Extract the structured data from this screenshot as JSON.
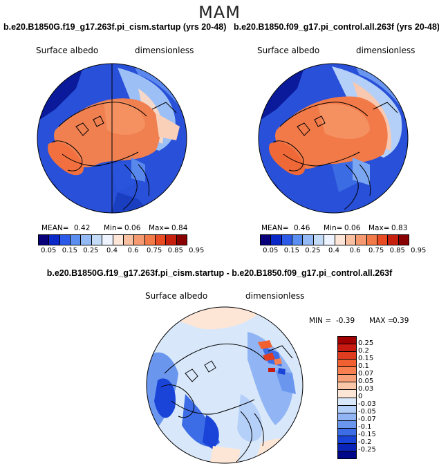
{
  "season": "MAM",
  "panels": [
    {
      "case": "b.e20.B1850G.f19_g17.263f.pi_cism.startup (yrs 20-48)",
      "field": "Surface albedo",
      "units": "dimensionless",
      "mean_label": "MEAN=",
      "mean": "0.42",
      "min_label": "Min=",
      "min": "0.06",
      "max_label": "Max=",
      "max": "0.84"
    },
    {
      "case": "b.e20.B1850.f09_g17.pi_control.all.263f (yrs 20-48)",
      "field": "Surface albedo",
      "units": "dimensionless",
      "mean_label": "MEAN=",
      "mean": "0.46",
      "min_label": "Min=",
      "min": "0.06",
      "max_label": "Max=",
      "max": "0.83"
    }
  ],
  "colorbar": {
    "ticks": [
      "0.05",
      "0.15",
      "0.25",
      "0.4",
      "0.6",
      "0.75",
      "0.85",
      "0.95"
    ],
    "colors": [
      "#08007a",
      "#0a27c8",
      "#2c5ae8",
      "#5a8ef0",
      "#94baf6",
      "#c4dbf8",
      "#eef4ff",
      "#fde6d8",
      "#f8c0a0",
      "#f59a70",
      "#f27a48",
      "#e84a22",
      "#c8200e",
      "#880000"
    ]
  },
  "diff": {
    "title": "b.e20.B1850G.f19_g17.263f.pi_cism.startup - b.e20.B1850.f09_g17.pi_control.all.263f",
    "field": "Surface albedo",
    "units": "dimensionless",
    "min_label": "MIN =",
    "min": "-0.39",
    "max_label": "MAX =",
    "max": "0.39",
    "colorbar": {
      "labels": [
        "0.25",
        "0.2",
        "0.15",
        "0.1",
        "0.07",
        "0.05",
        "0.03",
        "0",
        "-0.03",
        "-0.05",
        "-0.07",
        "-0.1",
        "-0.15",
        "-0.2",
        "-0.25"
      ],
      "colors": [
        "#a00000",
        "#c81a10",
        "#e03c20",
        "#f06030",
        "#f88050",
        "#f8a078",
        "#fac8a8",
        "#fde6d6",
        "#d8e8fa",
        "#b4cff8",
        "#90b4f4",
        "#6a96ee",
        "#3c6ce6",
        "#1a44d8",
        "#0a24b8",
        "#00088a"
      ]
    }
  }
}
